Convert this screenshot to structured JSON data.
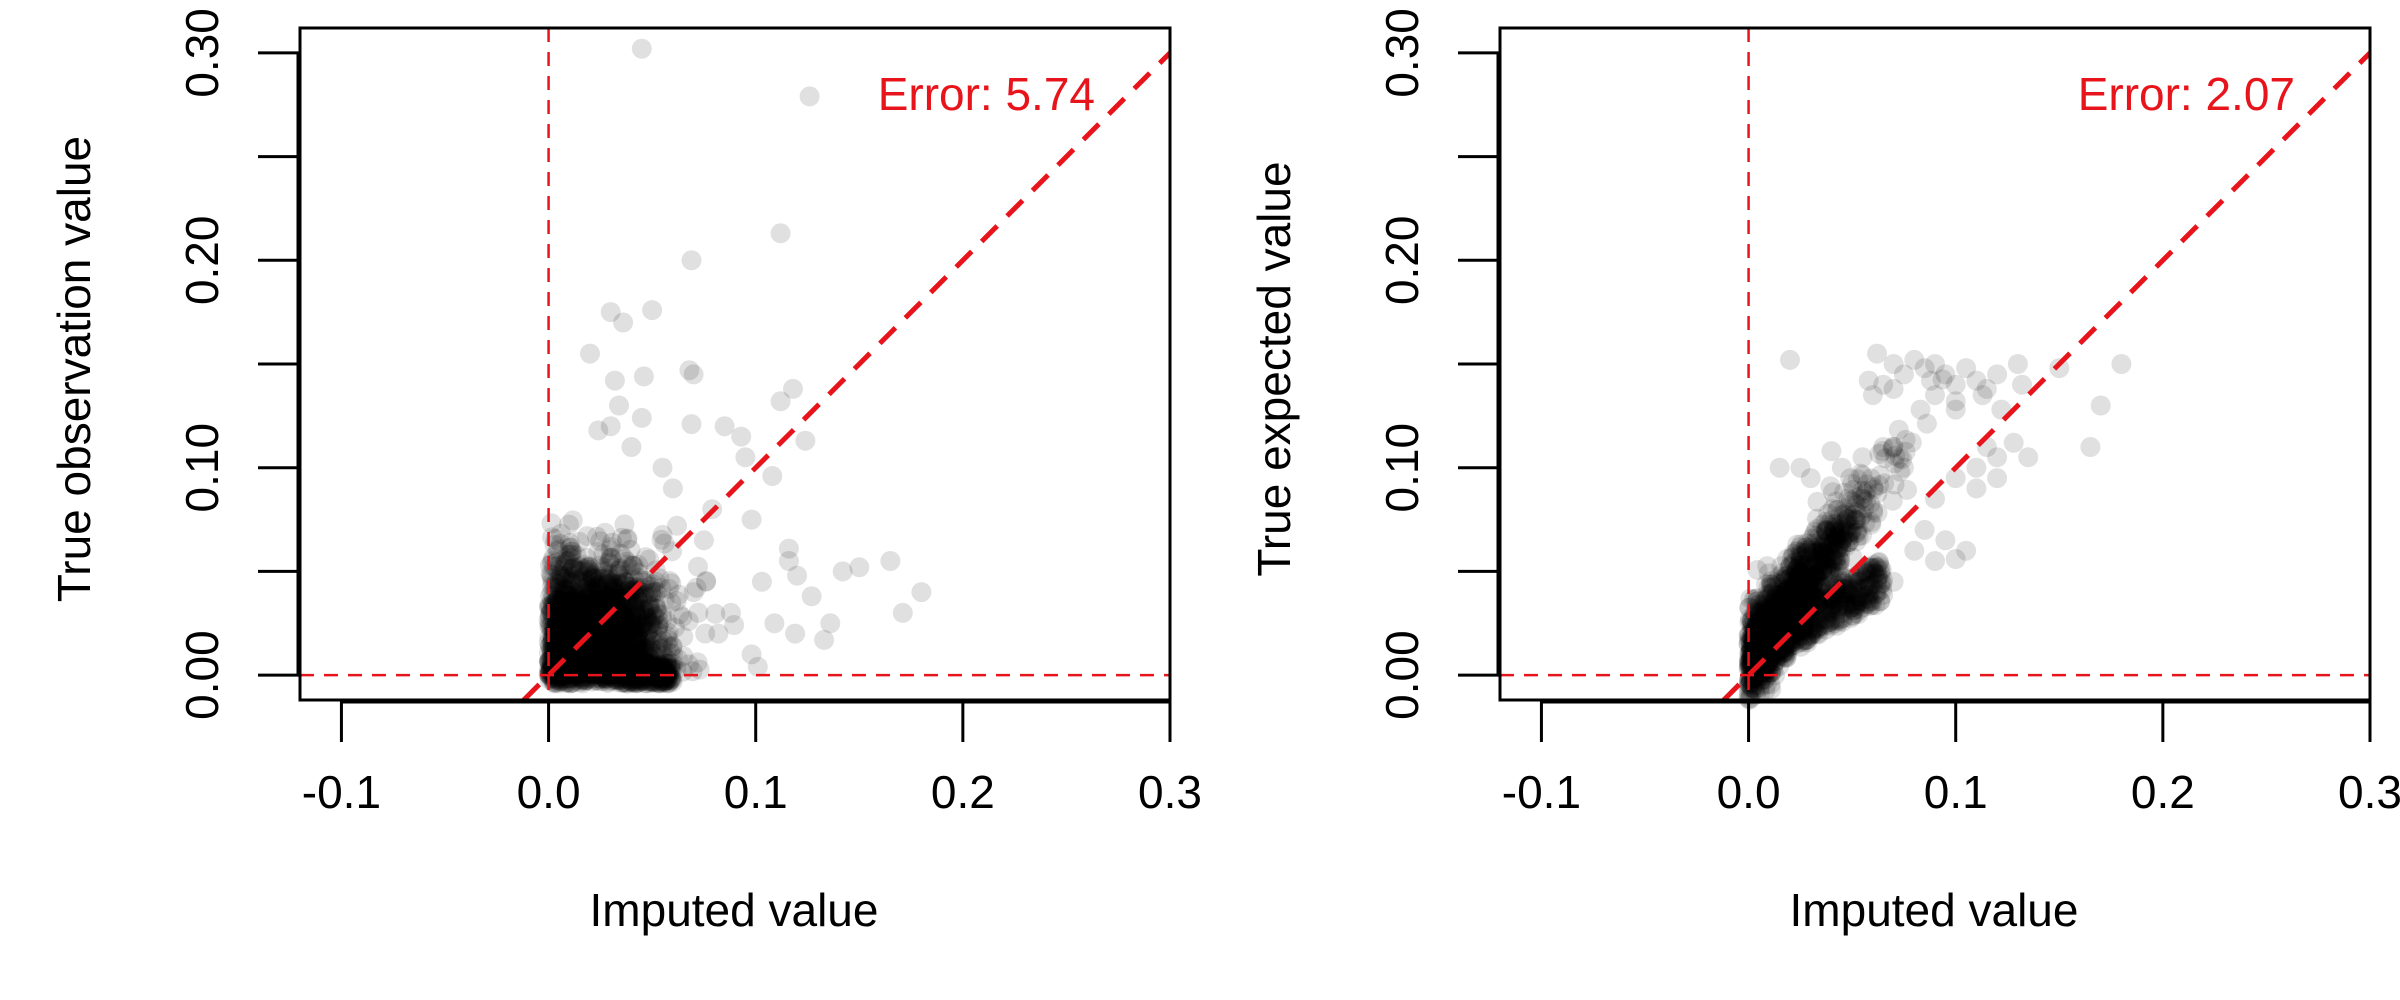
{
  "chart_data": [
    {
      "type": "scatter",
      "xlabel": "Imputed value",
      "ylabel": "True observation value",
      "annotation": "Error: 5.74",
      "xlim": [
        -0.12,
        0.3
      ],
      "ylim": [
        -0.012,
        0.312
      ],
      "x_ticks": [
        "-0.1",
        "0.0",
        "0.1",
        "0.2",
        "0.3"
      ],
      "x_tick_values": [
        -0.1,
        0.0,
        0.1,
        0.2,
        0.3
      ],
      "y_ticks": [
        "0.00",
        "0.10",
        "0.20",
        "0.30"
      ],
      "y_tick_values": [
        0.0,
        0.1,
        0.2,
        0.3
      ],
      "y_minor_ticks": [
        0.05,
        0.15,
        0.25
      ],
      "reference_lines": {
        "vertical_x": 0.0,
        "horizontal_y": 0.0,
        "diagonal": "y = x"
      },
      "colors": {
        "points": "#000000",
        "point_opacity": 0.12,
        "reference": "#e8141b",
        "axis": "#000000"
      },
      "points": [
        [
          0.045,
          0.302
        ],
        [
          0.126,
          0.279
        ],
        [
          0.112,
          0.213
        ],
        [
          0.069,
          0.2
        ],
        [
          0.05,
          0.176
        ],
        [
          0.03,
          0.175
        ],
        [
          0.036,
          0.17
        ],
        [
          0.02,
          0.155
        ],
        [
          0.068,
          0.147
        ],
        [
          0.07,
          0.145
        ],
        [
          0.118,
          0.138
        ],
        [
          0.112,
          0.132
        ],
        [
          0.046,
          0.144
        ],
        [
          0.034,
          0.13
        ],
        [
          0.069,
          0.121
        ],
        [
          0.085,
          0.12
        ],
        [
          0.093,
          0.115
        ],
        [
          0.124,
          0.113
        ],
        [
          0.095,
          0.105
        ],
        [
          0.108,
          0.096
        ],
        [
          0.079,
          0.08
        ],
        [
          0.098,
          0.075
        ],
        [
          0.116,
          0.061
        ],
        [
          0.116,
          0.055
        ],
        [
          0.165,
          0.055
        ],
        [
          0.15,
          0.052
        ],
        [
          0.142,
          0.05
        ],
        [
          0.18,
          0.04
        ],
        [
          0.12,
          0.048
        ],
        [
          0.103,
          0.045
        ],
        [
          0.127,
          0.038
        ],
        [
          0.171,
          0.03
        ],
        [
          0.136,
          0.025
        ],
        [
          0.119,
          0.02
        ],
        [
          0.133,
          0.017
        ],
        [
          0.098,
          0.01
        ],
        [
          0.101,
          0.004
        ],
        [
          0.109,
          0.025
        ],
        [
          0.088,
          0.03
        ],
        [
          0.075,
          0.065
        ],
        [
          0.06,
          0.09
        ],
        [
          0.055,
          0.1
        ],
        [
          0.04,
          0.11
        ],
        [
          0.03,
          0.12
        ],
        [
          0.024,
          0.118
        ],
        [
          0.045,
          0.124
        ],
        [
          0.032,
          0.142
        ],
        [
          0.062,
          0.072
        ],
        [
          0.07,
          0.04
        ],
        [
          0.082,
          0.02
        ],
        [
          0.076,
          0.045
        ]
      ],
      "cluster": {
        "x_center": 0.022,
        "x_spread": 0.018,
        "y_center": 0.02,
        "y_spread": 0.02,
        "count": 2200
      }
    },
    {
      "type": "scatter",
      "xlabel": "Imputed value",
      "ylabel": "True expected value",
      "annotation": "Error: 2.07",
      "xlim": [
        -0.12,
        0.3
      ],
      "ylim": [
        -0.012,
        0.312
      ],
      "x_ticks": [
        "-0.1",
        "0.0",
        "0.1",
        "0.2",
        "0.3"
      ],
      "x_tick_values": [
        -0.1,
        0.0,
        0.1,
        0.2,
        0.3
      ],
      "y_ticks": [
        "0.00",
        "0.10",
        "0.20",
        "0.30"
      ],
      "y_tick_values": [
        0.0,
        0.1,
        0.2,
        0.3
      ],
      "y_minor_ticks": [
        0.05,
        0.15,
        0.25
      ],
      "reference_lines": {
        "vertical_x": 0.0,
        "horizontal_y": 0.0,
        "diagonal": "y = x"
      },
      "colors": {
        "points": "#000000",
        "point_opacity": 0.12,
        "reference": "#e8141b",
        "axis": "#000000"
      },
      "points": [
        [
          0.062,
          0.155
        ],
        [
          0.07,
          0.15
        ],
        [
          0.075,
          0.145
        ],
        [
          0.08,
          0.152
        ],
        [
          0.085,
          0.148
        ],
        [
          0.09,
          0.15
        ],
        [
          0.095,
          0.145
        ],
        [
          0.1,
          0.14
        ],
        [
          0.105,
          0.148
        ],
        [
          0.11,
          0.142
        ],
        [
          0.115,
          0.138
        ],
        [
          0.12,
          0.145
        ],
        [
          0.13,
          0.15
        ],
        [
          0.18,
          0.15
        ],
        [
          0.15,
          0.148
        ],
        [
          0.07,
          0.138
        ],
        [
          0.065,
          0.14
        ],
        [
          0.09,
          0.135
        ],
        [
          0.1,
          0.132
        ],
        [
          0.113,
          0.135
        ],
        [
          0.058,
          0.142
        ],
        [
          0.088,
          0.142
        ],
        [
          0.132,
          0.14
        ],
        [
          0.083,
          0.128
        ],
        [
          0.1,
          0.128
        ],
        [
          0.122,
          0.128
        ],
        [
          0.06,
          0.135
        ],
        [
          0.02,
          0.152
        ],
        [
          0.17,
          0.13
        ],
        [
          0.165,
          0.11
        ],
        [
          0.135,
          0.105
        ],
        [
          0.128,
          0.112
        ],
        [
          0.11,
          0.1
        ],
        [
          0.1,
          0.095
        ],
        [
          0.09,
          0.085
        ],
        [
          0.11,
          0.09
        ],
        [
          0.12,
          0.095
        ],
        [
          0.105,
          0.06
        ],
        [
          0.1,
          0.056
        ],
        [
          0.09,
          0.055
        ],
        [
          0.08,
          0.06
        ],
        [
          0.085,
          0.07
        ],
        [
          0.07,
          0.11
        ],
        [
          0.075,
          0.1
        ],
        [
          0.065,
          0.11
        ],
        [
          0.055,
          0.105
        ],
        [
          0.045,
          0.1
        ],
        [
          0.04,
          0.108
        ],
        [
          0.03,
          0.095
        ],
        [
          0.025,
          0.1
        ],
        [
          0.015,
          0.1
        ],
        [
          0.06,
          0.05
        ],
        [
          0.07,
          0.045
        ],
        [
          0.095,
          0.065
        ],
        [
          0.115,
          0.11
        ],
        [
          0.12,
          0.105
        ]
      ],
      "cluster": {
        "band_x": [
          0.0,
          0.058
        ],
        "band_slope": 1.45,
        "band_intercept": 0.006,
        "band_width": 0.011,
        "count": 1700
      }
    }
  ]
}
